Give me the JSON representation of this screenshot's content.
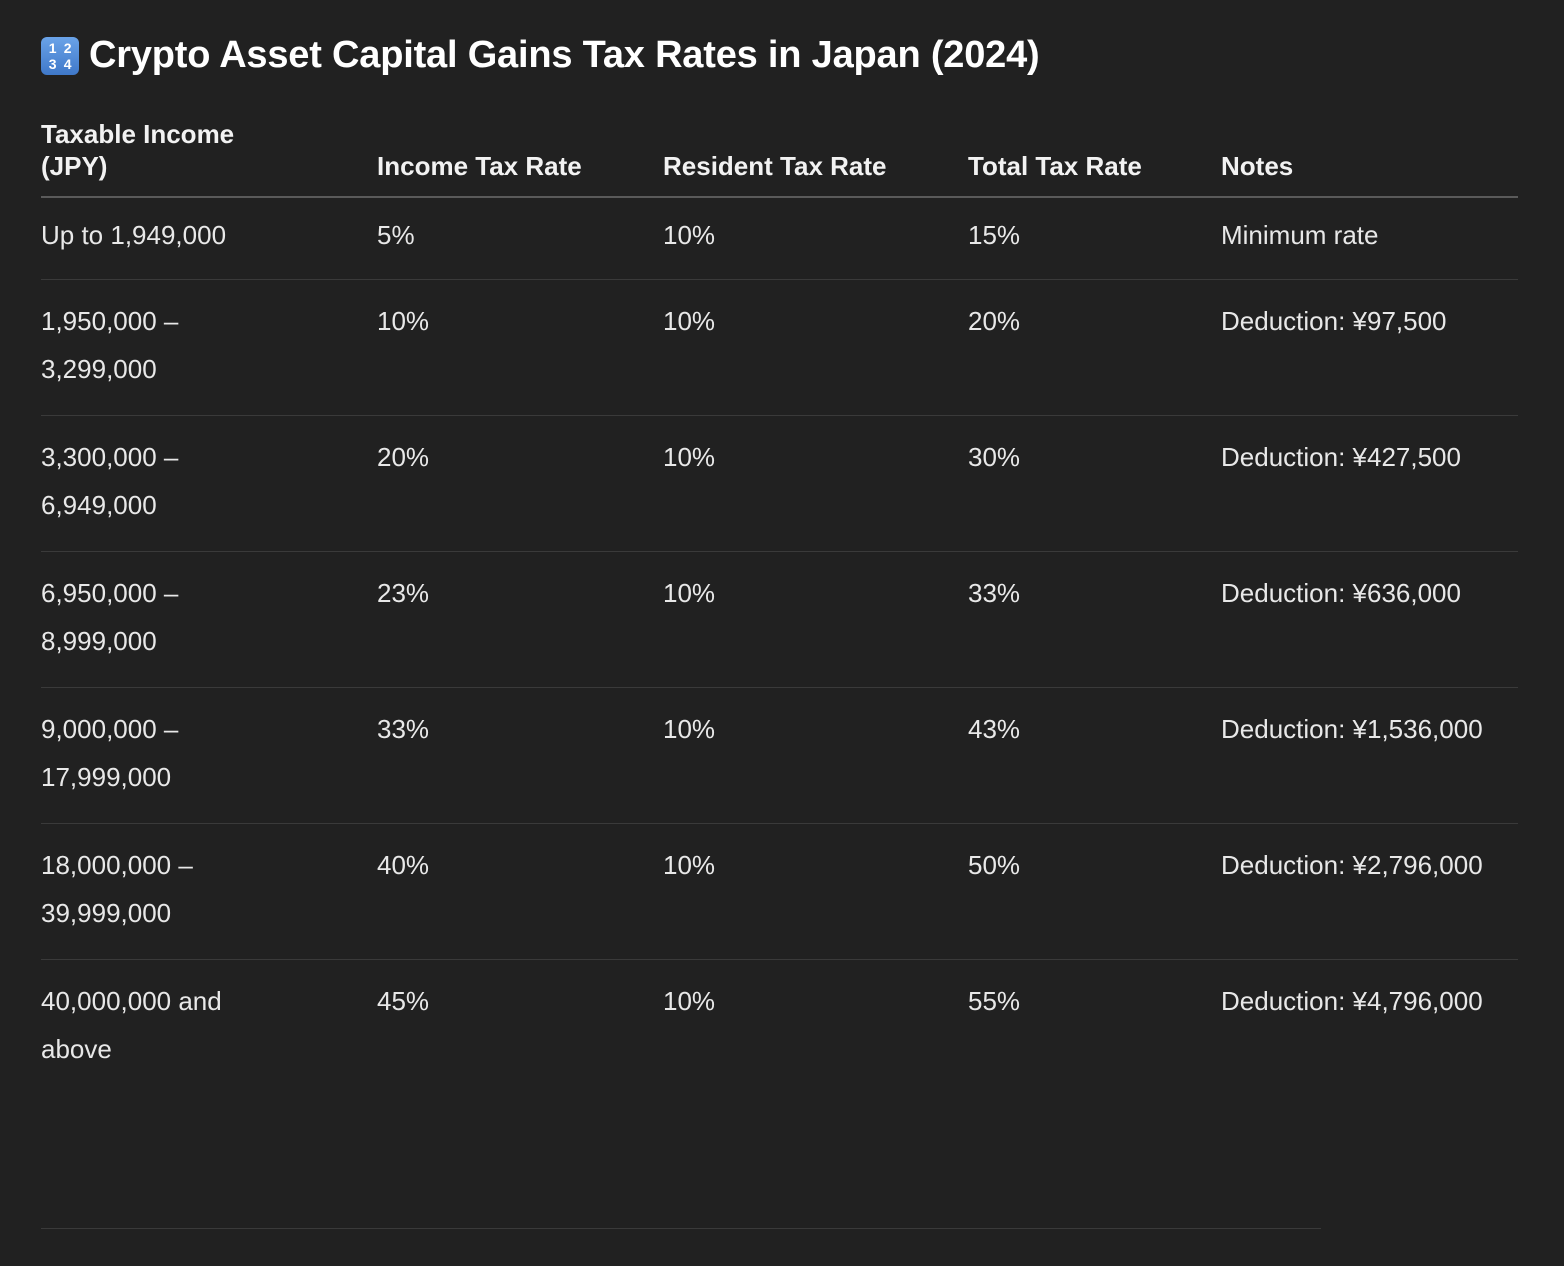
{
  "heading": {
    "icon": "input-numbers-icon",
    "icon_digits": [
      "1",
      "2",
      "3",
      "4"
    ],
    "title": "Crypto Asset Capital Gains Tax Rates in Japan (2024)"
  },
  "table": {
    "columns": [
      "Taxable Income (JPY)",
      "Income Tax Rate",
      "Resident Tax Rate",
      "Total Tax Rate",
      "Notes"
    ],
    "rows": [
      [
        "Up to 1,949,000",
        "5%",
        "10%",
        "15%",
        "Minimum rate"
      ],
      [
        "1,950,000 – 3,299,000",
        "10%",
        "10%",
        "20%",
        "Deduction: ¥97,500"
      ],
      [
        "3,300,000 – 6,949,000",
        "20%",
        "10%",
        "30%",
        "Deduction: ¥427,500"
      ],
      [
        "6,950,000 – 8,999,000",
        "23%",
        "10%",
        "33%",
        "Deduction: ¥636,000"
      ],
      [
        "9,000,000 – 17,999,000",
        "33%",
        "10%",
        "43%",
        "Deduction: ¥1,536,000"
      ],
      [
        "18,000,000 – 39,999,000",
        "40%",
        "10%",
        "50%",
        "Deduction: ¥2,796,000"
      ],
      [
        "40,000,000 and above",
        "45%",
        "10%",
        "55%",
        "Deduction: ¥4,796,000"
      ]
    ]
  }
}
